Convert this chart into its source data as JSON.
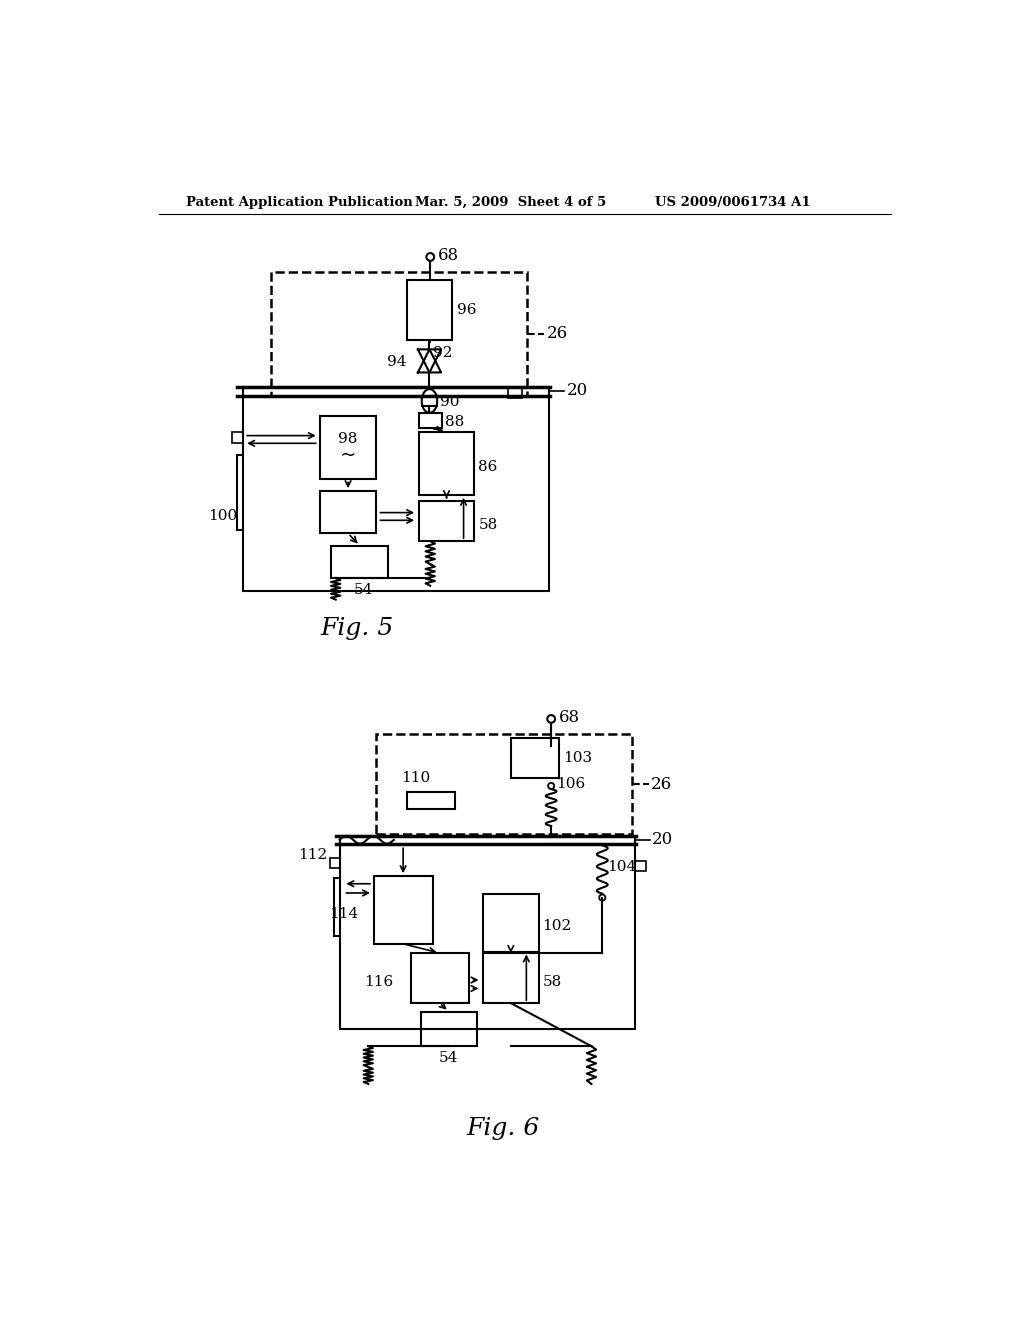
{
  "background_color": "#ffffff",
  "header_text1": "Patent Application Publication",
  "header_text2": "Mar. 5, 2009  Sheet 4 of 5",
  "header_text3": "US 2009/0061734 A1",
  "fig5_label": "Fig. 5",
  "fig6_label": "Fig. 6"
}
